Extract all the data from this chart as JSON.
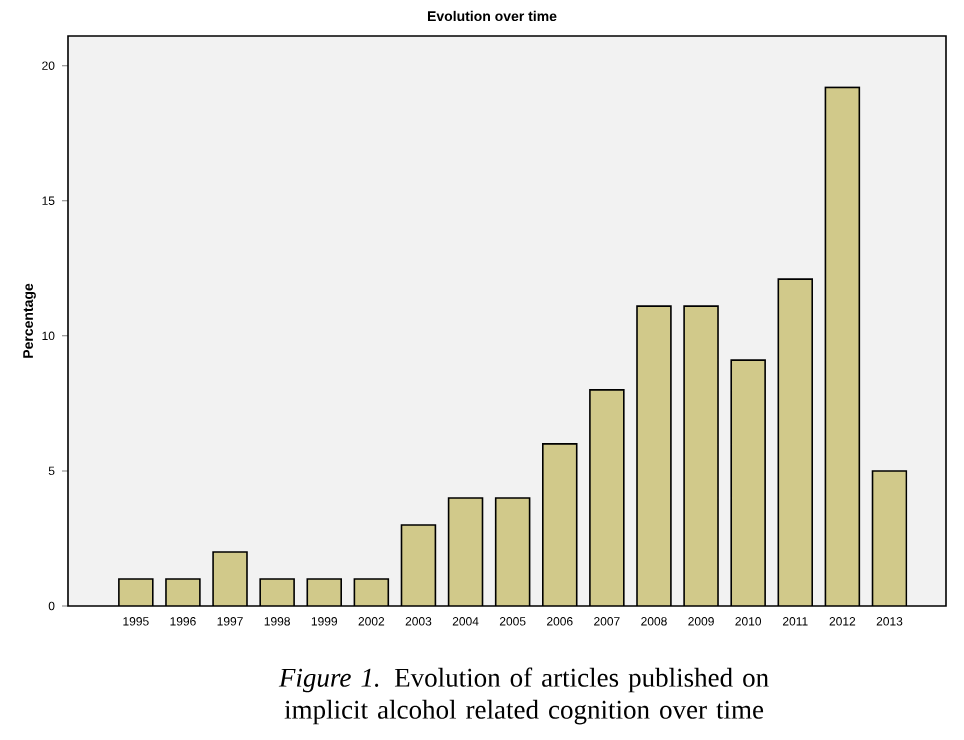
{
  "chart_data": {
    "type": "bar",
    "title": "Evolution over time",
    "ylabel": "Percentage",
    "categories": [
      "1995",
      "1996",
      "1997",
      "1998",
      "1999",
      "2002",
      "2003",
      "2004",
      "2005",
      "2006",
      "2007",
      "2008",
      "2009",
      "2010",
      "2011",
      "2012",
      "2013"
    ],
    "values": [
      1,
      1,
      2,
      1,
      1,
      1,
      3,
      4,
      4,
      6,
      8,
      11.1,
      11.1,
      9.1,
      12.1,
      19.2,
      5
    ],
    "color": "#d1c98a",
    "ylim": [
      0,
      21.1
    ],
    "yticks": [
      0,
      5,
      10,
      15,
      20
    ],
    "annotations": [
      "*Figure 1.* Evolution of articles published on implicit alcohol related cognition over time"
    ]
  }
}
